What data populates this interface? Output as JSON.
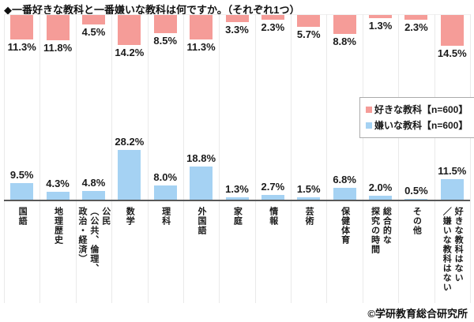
{
  "title": "◆一番好きな教科と一番嫌いな教科は何ですか。（それぞれ1つ）",
  "copyright": "©学研教育総合研究所",
  "chart_data": {
    "type": "bar",
    "subtype": "diverging-vertical",
    "title": "一番好きな教科と一番嫌いな教科は何ですか。（それぞれ1つ）",
    "categories": [
      "国語",
      "地理歴史",
      "公民（公共、倫理、政治・経済）",
      "数学",
      "理科",
      "外国語",
      "家庭",
      "情報",
      "芸術",
      "保健体育",
      "総合的な探究の時間",
      "その他",
      "好きな教科はない／嫌いな教科はない"
    ],
    "category_display": [
      "国語",
      "地理歴史",
      "公民\n（公共、倫理、\n政治・経済）",
      "数学",
      "理科",
      "外国語",
      "家庭",
      "情報",
      "芸術",
      "保健体育",
      "総合的な\n探究の時間",
      "その他",
      "好きな教科はない\n／嫌いな教科はない"
    ],
    "series": [
      {
        "name": "好きな教科【n=600】",
        "color": "#F59C98",
        "direction": "hanging-from-top",
        "values": [
          11.3,
          11.8,
          4.5,
          14.2,
          8.5,
          11.3,
          3.3,
          2.3,
          5.7,
          8.8,
          1.3,
          2.3,
          14.5
        ]
      },
      {
        "name": "嫌いな教科【n=600】",
        "color": "#A5D2F3",
        "direction": "rising-from-axis",
        "values": [
          9.5,
          4.3,
          4.8,
          28.2,
          8.0,
          18.8,
          1.3,
          2.7,
          1.5,
          6.8,
          2.0,
          0.5,
          11.5
        ]
      }
    ],
    "value_suffix": "%",
    "value_label_decimals": 1,
    "legend_position": "middle-right",
    "grid": "vertical-column-separators",
    "axis_color": "#595959",
    "grid_color": "#EAEAEA"
  }
}
